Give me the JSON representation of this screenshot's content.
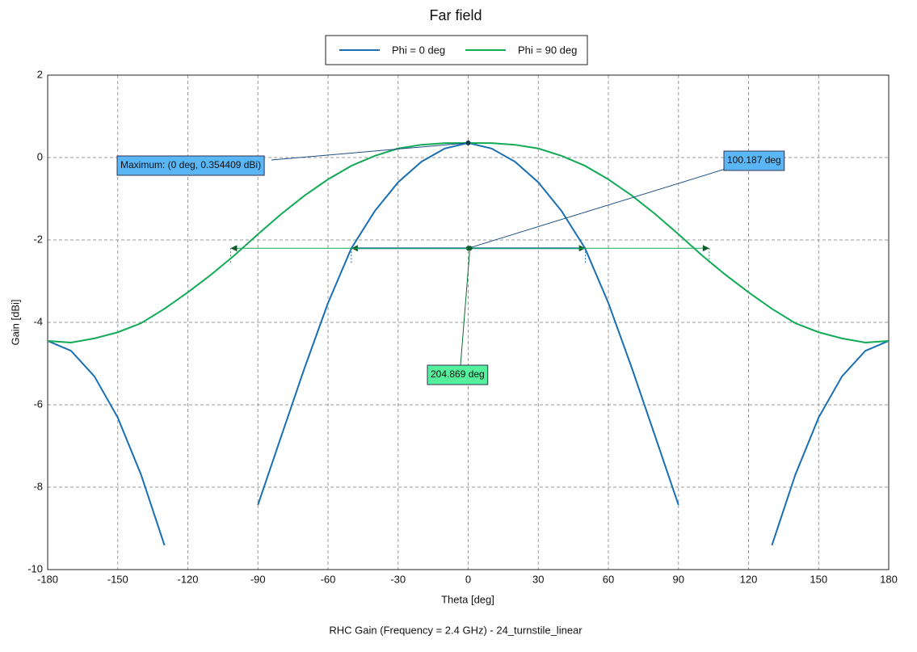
{
  "chart_data": {
    "type": "line",
    "title": "Far field",
    "footer": "RHC Gain (Frequency = 2.4 GHz) - 24_turnstile_linear",
    "x_label": "Theta [deg]",
    "y_label": "Gain [dBi]",
    "x": [
      -180,
      -170,
      -160,
      -150,
      -140,
      -130,
      -120,
      -110,
      -100,
      -90,
      -80,
      -70,
      -60,
      -50,
      -40,
      -30,
      -20,
      -10,
      0,
      10,
      20,
      30,
      40,
      50,
      60,
      70,
      80,
      90,
      100,
      110,
      120,
      130,
      140,
      150,
      160,
      170,
      180
    ],
    "series": [
      {
        "name": "Phi = 0 deg",
        "color": "#1a6fb3",
        "values": [
          -4.45,
          -4.69,
          -5.31,
          -6.31,
          -7.7,
          -9.41,
          null,
          null,
          null,
          -8.43,
          -6.76,
          -5.1,
          -3.53,
          -2.2,
          -1.3,
          -0.6,
          -0.1,
          0.22,
          0.354,
          0.22,
          -0.1,
          -0.6,
          -1.3,
          -2.2,
          -3.53,
          -5.1,
          -6.76,
          -8.43,
          null,
          null,
          null,
          -9.41,
          -7.7,
          -6.31,
          -5.31,
          -4.69,
          -4.45
        ]
      },
      {
        "name": "Phi = 90 deg",
        "color": "#12aa55",
        "values": [
          -4.45,
          -4.49,
          -4.39,
          -4.24,
          -4.02,
          -3.67,
          -3.27,
          -2.84,
          -2.37,
          -1.86,
          -1.37,
          -0.92,
          -0.53,
          -0.2,
          0.04,
          0.22,
          0.31,
          0.35,
          0.354,
          0.35,
          0.31,
          0.22,
          0.04,
          -0.2,
          -0.53,
          -0.92,
          -1.37,
          -1.86,
          -2.37,
          -2.84,
          -3.27,
          -3.67,
          -4.02,
          -4.24,
          -4.39,
          -4.49,
          -4.45
        ]
      }
    ],
    "xlim": [
      -180,
      180
    ],
    "xticks": [
      -180,
      -150,
      -120,
      -90,
      -60,
      -30,
      0,
      30,
      60,
      90,
      120,
      150,
      180
    ],
    "ylim": [
      -10,
      2
    ],
    "yticks": [
      -10,
      -8,
      -6,
      -4,
      -2,
      0,
      2
    ],
    "grid": true,
    "maximum": {
      "label": "Maximum: (0 deg, 0.354409 dBi)",
      "x": 0,
      "y": 0.354409
    },
    "beamwidths": [
      {
        "label": "100.187 deg",
        "color": "#1a6fb3",
        "box_color": "#5ab6f4",
        "start": -50.0,
        "end": 50.187,
        "level": -2.2
      },
      {
        "label": "204.869 deg",
        "color": "#12aa55",
        "box_color": "#55f09c",
        "start": -101.7,
        "end": 103.169,
        "level": -2.2
      }
    ]
  }
}
